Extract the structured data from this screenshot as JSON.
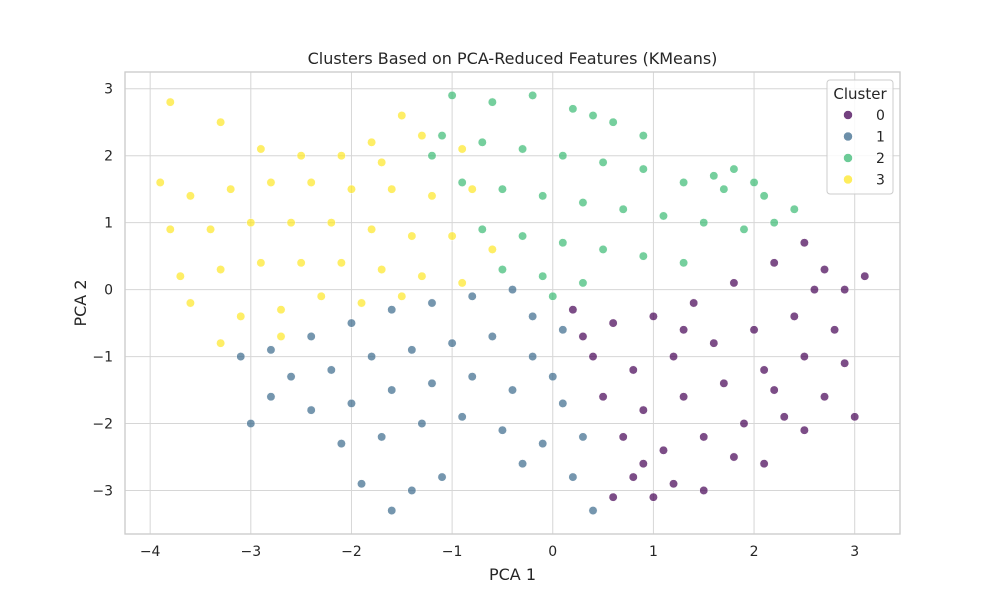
{
  "chart_data": {
    "type": "scatter",
    "title": "Clusters Based on PCA-Reduced Features (KMeans)",
    "xlabel": "PCA 1",
    "ylabel": "PCA 2",
    "xlim": [
      -4.25,
      3.45
    ],
    "ylim": [
      -3.65,
      3.25
    ],
    "x_ticks": [
      -4,
      -3,
      -2,
      -1,
      0,
      1,
      2,
      3
    ],
    "y_ticks": [
      -3,
      -2,
      -1,
      0,
      1,
      2,
      3
    ],
    "x_tick_labels": [
      "−4",
      "−3",
      "−2",
      "−1",
      "0",
      "1",
      "2",
      "3"
    ],
    "y_tick_labels": [
      "−3",
      "−2",
      "−1",
      "0",
      "1",
      "2",
      "3"
    ],
    "grid": true,
    "legend": {
      "title": "Cluster",
      "position": "top-right"
    },
    "series": [
      {
        "name": "0",
        "color": "#440154",
        "points": [
          [
            0.2,
            -0.3
          ],
          [
            0.6,
            -0.5
          ],
          [
            1.0,
            -0.4
          ],
          [
            1.4,
            -0.2
          ],
          [
            1.8,
            0.1
          ],
          [
            2.2,
            0.4
          ],
          [
            2.5,
            0.7
          ],
          [
            2.7,
            0.3
          ],
          [
            2.9,
            0.0
          ],
          [
            3.1,
            0.2
          ],
          [
            0.4,
            -1.0
          ],
          [
            0.8,
            -1.2
          ],
          [
            1.2,
            -1.0
          ],
          [
            1.6,
            -0.8
          ],
          [
            2.0,
            -0.6
          ],
          [
            2.4,
            -0.4
          ],
          [
            2.8,
            -0.6
          ],
          [
            0.5,
            -1.6
          ],
          [
            0.9,
            -1.8
          ],
          [
            1.3,
            -1.6
          ],
          [
            1.7,
            -1.4
          ],
          [
            2.1,
            -1.2
          ],
          [
            2.5,
            -1.0
          ],
          [
            2.9,
            -1.1
          ],
          [
            0.7,
            -2.2
          ],
          [
            1.1,
            -2.4
          ],
          [
            1.5,
            -2.2
          ],
          [
            1.9,
            -2.0
          ],
          [
            2.3,
            -1.9
          ],
          [
            2.7,
            -1.6
          ],
          [
            0.8,
            -2.8
          ],
          [
            1.2,
            -2.9
          ],
          [
            1.0,
            -3.1
          ],
          [
            0.6,
            -3.1
          ],
          [
            2.1,
            -2.6
          ],
          [
            2.5,
            -2.1
          ],
          [
            3.0,
            -1.9
          ],
          [
            1.5,
            -3.0
          ],
          [
            1.8,
            -2.5
          ],
          [
            2.2,
            -1.5
          ],
          [
            0.3,
            -0.7
          ],
          [
            2.6,
            0.0
          ],
          [
            1.3,
            -0.6
          ],
          [
            0.9,
            -2.6
          ]
        ]
      },
      {
        "name": "1",
        "color": "#3b6a8c",
        "points": [
          [
            -2.8,
            -0.9
          ],
          [
            -2.4,
            -0.7
          ],
          [
            -2.0,
            -0.5
          ],
          [
            -1.6,
            -0.3
          ],
          [
            -1.2,
            -0.2
          ],
          [
            -0.8,
            -0.1
          ],
          [
            -0.4,
            0.0
          ],
          [
            -0.2,
            -0.4
          ],
          [
            0.1,
            -0.6
          ],
          [
            -2.6,
            -1.3
          ],
          [
            -2.2,
            -1.2
          ],
          [
            -1.8,
            -1.0
          ],
          [
            -1.4,
            -0.9
          ],
          [
            -1.0,
            -0.8
          ],
          [
            -0.6,
            -0.7
          ],
          [
            -0.2,
            -1.0
          ],
          [
            0.0,
            -1.3
          ],
          [
            -2.4,
            -1.8
          ],
          [
            -2.0,
            -1.7
          ],
          [
            -1.6,
            -1.5
          ],
          [
            -1.2,
            -1.4
          ],
          [
            -0.8,
            -1.3
          ],
          [
            -0.4,
            -1.5
          ],
          [
            0.1,
            -1.7
          ],
          [
            -2.1,
            -2.3
          ],
          [
            -1.7,
            -2.2
          ],
          [
            -1.3,
            -2.0
          ],
          [
            -0.9,
            -1.9
          ],
          [
            -0.5,
            -2.1
          ],
          [
            -0.1,
            -2.3
          ],
          [
            0.3,
            -2.2
          ],
          [
            -1.9,
            -2.9
          ],
          [
            -1.6,
            -3.3
          ],
          [
            -1.4,
            -3.0
          ],
          [
            -1.1,
            -2.8
          ],
          [
            -3.0,
            -2.0
          ],
          [
            -3.1,
            -1.0
          ],
          [
            0.4,
            -3.3
          ],
          [
            0.2,
            -2.8
          ],
          [
            -2.8,
            -1.6
          ],
          [
            -0.3,
            -2.6
          ]
        ]
      },
      {
        "name": "2",
        "color": "#3bba74",
        "points": [
          [
            -1.0,
            2.9
          ],
          [
            -0.6,
            2.8
          ],
          [
            -0.2,
            2.9
          ],
          [
            0.2,
            2.7
          ],
          [
            0.6,
            2.5
          ],
          [
            0.9,
            2.3
          ],
          [
            -1.1,
            2.3
          ],
          [
            -0.7,
            2.2
          ],
          [
            -0.3,
            2.1
          ],
          [
            0.1,
            2.0
          ],
          [
            0.5,
            1.9
          ],
          [
            0.9,
            1.8
          ],
          [
            1.3,
            1.6
          ],
          [
            1.7,
            1.5
          ],
          [
            2.1,
            1.4
          ],
          [
            2.4,
            1.2
          ],
          [
            -0.9,
            1.6
          ],
          [
            -0.5,
            1.5
          ],
          [
            -0.1,
            1.4
          ],
          [
            0.3,
            1.3
          ],
          [
            0.7,
            1.2
          ],
          [
            1.1,
            1.1
          ],
          [
            1.5,
            1.0
          ],
          [
            1.9,
            0.9
          ],
          [
            2.2,
            1.0
          ],
          [
            -0.7,
            0.9
          ],
          [
            -0.3,
            0.8
          ],
          [
            0.1,
            0.7
          ],
          [
            0.5,
            0.6
          ],
          [
            0.9,
            0.5
          ],
          [
            1.3,
            0.4
          ],
          [
            -0.5,
            0.3
          ],
          [
            -0.1,
            0.2
          ],
          [
            0.3,
            0.1
          ],
          [
            0.0,
            -0.1
          ],
          [
            1.8,
            1.8
          ],
          [
            2.0,
            1.6
          ],
          [
            1.6,
            1.7
          ],
          [
            0.4,
            2.6
          ],
          [
            -1.2,
            2.0
          ]
        ]
      },
      {
        "name": "3",
        "color": "#fde725",
        "points": [
          [
            -3.8,
            2.8
          ],
          [
            -3.3,
            2.5
          ],
          [
            -2.9,
            2.1
          ],
          [
            -2.5,
            2.0
          ],
          [
            -2.1,
            2.0
          ],
          [
            -1.7,
            1.9
          ],
          [
            -1.3,
            2.3
          ],
          [
            -1.5,
            2.6
          ],
          [
            -0.9,
            2.1
          ],
          [
            -3.9,
            1.6
          ],
          [
            -3.6,
            1.4
          ],
          [
            -3.2,
            1.5
          ],
          [
            -2.8,
            1.6
          ],
          [
            -2.4,
            1.6
          ],
          [
            -2.0,
            1.5
          ],
          [
            -1.6,
            1.5
          ],
          [
            -1.2,
            1.4
          ],
          [
            -0.8,
            1.5
          ],
          [
            -3.8,
            0.9
          ],
          [
            -3.4,
            0.9
          ],
          [
            -3.0,
            1.0
          ],
          [
            -2.6,
            1.0
          ],
          [
            -2.2,
            1.0
          ],
          [
            -1.8,
            0.9
          ],
          [
            -1.4,
            0.8
          ],
          [
            -1.0,
            0.8
          ],
          [
            -0.6,
            0.6
          ],
          [
            -3.7,
            0.2
          ],
          [
            -3.3,
            0.3
          ],
          [
            -2.9,
            0.4
          ],
          [
            -2.5,
            0.4
          ],
          [
            -2.1,
            0.4
          ],
          [
            -1.7,
            0.3
          ],
          [
            -1.3,
            0.2
          ],
          [
            -0.9,
            0.1
          ],
          [
            -3.3,
            -0.8
          ],
          [
            -3.1,
            -0.4
          ],
          [
            -2.7,
            -0.3
          ],
          [
            -2.3,
            -0.1
          ],
          [
            -1.9,
            -0.2
          ],
          [
            -1.5,
            -0.1
          ],
          [
            -2.7,
            -0.7
          ],
          [
            -3.6,
            -0.2
          ],
          [
            -1.8,
            2.2
          ]
        ]
      }
    ]
  }
}
